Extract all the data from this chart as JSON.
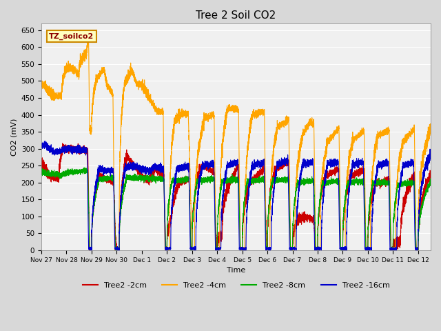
{
  "title": "Tree 2 Soil CO2",
  "xlabel": "Time",
  "ylabel": "CO2 (mV)",
  "ylim": [
    0,
    670
  ],
  "yticks": [
    0,
    50,
    100,
    150,
    200,
    250,
    300,
    350,
    400,
    450,
    500,
    550,
    600,
    650
  ],
  "plot_bg_color": "#f0f0f0",
  "fig_bg_color": "#d8d8d8",
  "legend_label": "TZ_soilco2",
  "series_colors": {
    "2cm": "#cc0000",
    "4cm": "#ffa500",
    "8cm": "#00aa00",
    "16cm": "#0000cc"
  },
  "series_labels": [
    "Tree2 -2cm",
    "Tree2 -4cm",
    "Tree2 -8cm",
    "Tree2 -16cm"
  ],
  "tick_labels": [
    "Nov 27",
    "Nov 28",
    "Nov 29",
    "Nov 30",
    "Dec 1",
    "Dec 2",
    "Dec 3",
    "Dec 4",
    "Dec 5",
    "Dec 6",
    "Dec 7",
    "Dec 8",
    "Dec 9",
    "Dec 10",
    "Dec 11",
    "Dec 12"
  ],
  "tick_positions": [
    0,
    1,
    2,
    3,
    4,
    5,
    6,
    7,
    8,
    9,
    10,
    11,
    12,
    13,
    14,
    15
  ]
}
